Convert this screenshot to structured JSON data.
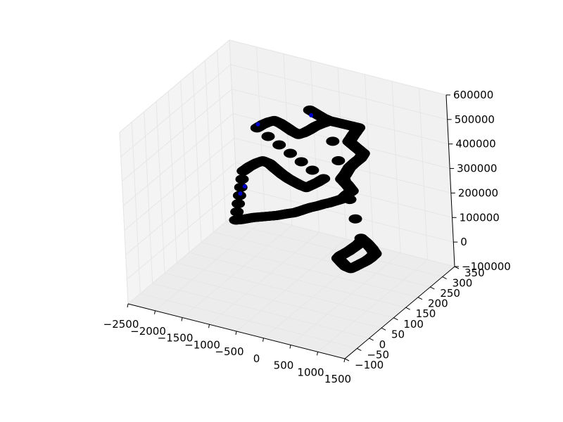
{
  "chart_data": {
    "type": "scatter3d",
    "title": "",
    "xlabel": "",
    "ylabel": "",
    "zlabel": "",
    "xlim": [
      -2500,
      1500
    ],
    "ylim": [
      -100,
      350
    ],
    "zlim": [
      -100000,
      600000
    ],
    "x_ticks": [
      "-2500",
      "-2000",
      "-1500",
      "-1000",
      "-500",
      "0",
      "500",
      "1000",
      "1500"
    ],
    "y_ticks": [
      "-100",
      "-50",
      "0",
      "50",
      "100",
      "150",
      "200",
      "250",
      "300",
      "350"
    ],
    "z_ticks": [
      "-100000",
      "0",
      "100000",
      "200000",
      "300000",
      "400000",
      "500000",
      "600000"
    ],
    "x_tick_labels": [
      "−2500",
      "−2000",
      "−1500",
      "−1000",
      "−500",
      "0",
      "500",
      "1000",
      "1500"
    ],
    "y_tick_labels": [
      "−100",
      "−50",
      "0",
      "50",
      "100",
      "150",
      "200",
      "250",
      "300",
      "350"
    ],
    "z_tick_labels": [
      "−100000",
      "0",
      "100000",
      "200000",
      "300000",
      "400000",
      "500000",
      "600000"
    ],
    "grid": true,
    "marker_color": "#000000",
    "marker_edge_color": "#000000",
    "highlight_color": "#0000cc",
    "pane_color": "#f2f2f2",
    "grid_color": "#e6e6e6",
    "series": [
      {
        "points": [
          [
            -350,
            200,
            560000
          ],
          [
            -250,
            205,
            545000
          ],
          [
            -150,
            210,
            530000
          ],
          [
            -60,
            215,
            520000
          ],
          [
            20,
            220,
            515000
          ],
          [
            120,
            225,
            510000
          ],
          [
            260,
            230,
            505000
          ],
          [
            380,
            235,
            500000
          ],
          [
            300,
            230,
            470000
          ],
          [
            220,
            228,
            440000
          ],
          [
            320,
            232,
            420000
          ],
          [
            430,
            238,
            395000
          ],
          [
            360,
            240,
            370000
          ],
          [
            270,
            236,
            350000
          ],
          [
            190,
            232,
            330000
          ],
          [
            120,
            228,
            300000
          ],
          [
            60,
            226,
            280000
          ],
          [
            130,
            232,
            255000
          ],
          [
            200,
            235,
            232000
          ],
          [
            110,
            232,
            214000
          ],
          [
            40,
            228,
            196000
          ],
          [
            -60,
            224,
            186000
          ],
          [
            -160,
            220,
            176000
          ],
          [
            -260,
            216,
            168000
          ],
          [
            -360,
            212,
            158000
          ],
          [
            -470,
            210,
            148000
          ],
          [
            -560,
            208,
            138000
          ],
          [
            -660,
            206,
            126000
          ],
          [
            -760,
            204,
            115000
          ],
          [
            -860,
            202,
            108000
          ],
          [
            -960,
            200,
            100000
          ],
          [
            -1060,
            198,
            92000
          ],
          [
            -1160,
            196,
            86000
          ],
          [
            -1260,
            194,
            80000
          ],
          [
            -1360,
            192,
            74000
          ],
          [
            -1460,
            190,
            68000
          ],
          [
            -1560,
            188,
            60000
          ],
          [
            -1660,
            186,
            52000
          ],
          [
            -1760,
            184,
            46000
          ],
          [
            -1600,
            190,
            250000
          ],
          [
            -1500,
            195,
            270000
          ],
          [
            -1400,
            200,
            285000
          ],
          [
            -1300,
            205,
            296000
          ],
          [
            -1200,
            210,
            286000
          ],
          [
            -1100,
            212,
            268000
          ],
          [
            -1000,
            215,
            250000
          ],
          [
            -900,
            218,
            235000
          ],
          [
            -800,
            220,
            225000
          ],
          [
            -700,
            222,
            216000
          ],
          [
            -600,
            224,
            210000
          ],
          [
            -500,
            226,
            225000
          ],
          [
            -400,
            228,
            240000
          ],
          [
            -300,
            230,
            258000
          ],
          [
            -1400,
            210,
            420000
          ],
          [
            -1300,
            212,
            438000
          ],
          [
            -1200,
            214,
            452000
          ],
          [
            -1100,
            216,
            462000
          ],
          [
            -1000,
            218,
            455000
          ],
          [
            -900,
            220,
            443000
          ],
          [
            -800,
            222,
            430000
          ],
          [
            -700,
            224,
            421000
          ],
          [
            -600,
            226,
            432000
          ],
          [
            -500,
            228,
            448000
          ],
          [
            -400,
            230,
            466000
          ],
          [
            -300,
            232,
            480000
          ],
          [
            -200,
            234,
            492000
          ],
          [
            300,
            240,
            40000
          ],
          [
            380,
            245,
            20000
          ],
          [
            450,
            248,
            0
          ],
          [
            500,
            250,
            -20000
          ],
          [
            420,
            248,
            -40000
          ],
          [
            340,
            246,
            -56000
          ],
          [
            250,
            244,
            -70000
          ],
          [
            160,
            242,
            -84000
          ],
          [
            80,
            240,
            -96000
          ],
          [
            0,
            238,
            -90000
          ],
          [
            -60,
            236,
            -76000
          ],
          [
            -120,
            234,
            -60000
          ],
          [
            -60,
            232,
            -44000
          ],
          [
            20,
            230,
            -30000
          ],
          [
            100,
            232,
            -16000
          ],
          [
            180,
            235,
            0
          ],
          [
            250,
            237,
            14000
          ],
          [
            300,
            239,
            28000
          ]
        ],
        "highlights": [
          [
            -330,
            200,
            540000
          ],
          [
            -1380,
            210,
            436000
          ],
          [
            -1580,
            188,
            190000
          ],
          [
            -1660,
            186,
            158000
          ]
        ]
      }
    ]
  }
}
